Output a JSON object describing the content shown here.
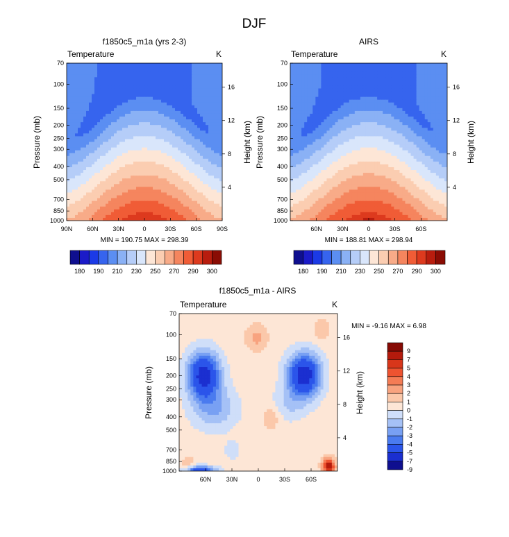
{
  "figure": {
    "title": "DJF"
  },
  "colors": {
    "sequential": [
      "#0f0f8f",
      "#1b1bc8",
      "#1b3ae6",
      "#3664ee",
      "#5b8ef2",
      "#8ab1f5",
      "#b5cdf8",
      "#d9e6fb",
      "#fde6d6",
      "#fbcdb1",
      "#f8ab88",
      "#f5855e",
      "#f05c36",
      "#dd3a1e",
      "#b81d0e",
      "#8a0c04"
    ],
    "difference": [
      "#0f0f8f",
      "#1b2fd0",
      "#2b55ea",
      "#4a7bef",
      "#78a0f3",
      "#a5c1f6",
      "#cfdef9",
      "#fde6d6",
      "#fbc8aa",
      "#f8a37f",
      "#f47c55",
      "#ee5330",
      "#d8361a",
      "#b41a0c",
      "#860a04"
    ]
  },
  "chart_data": [
    {
      "id": "model",
      "type": "contour",
      "title": "f1850c5_m1a (yrs 2-3)",
      "left_label": "Temperature",
      "right_label": "K",
      "ylabel": "Pressure (mb)",
      "ylabel_right": "Height (km)",
      "pressure_ticks": [
        "70",
        "100",
        "150",
        "200",
        "250",
        "300",
        "400",
        "500",
        "700",
        "850",
        "1000"
      ],
      "pressure_values": [
        70,
        100,
        150,
        200,
        250,
        300,
        400,
        500,
        700,
        850,
        1000
      ],
      "ylim": [
        1000,
        70
      ],
      "height_ticks": [
        "16",
        "12",
        "8",
        "4"
      ],
      "height_values": [
        16,
        12,
        8,
        4
      ],
      "latitude_ticks": [
        "90N",
        "60N",
        "30N",
        "0",
        "30S",
        "60S",
        "90S"
      ],
      "latitude_values": [
        90,
        60,
        30,
        0,
        -30,
        -60,
        -90
      ],
      "xlim": [
        90,
        -90
      ],
      "stats": "MIN = 190.75  MAX = 298.39",
      "stats_min": 190.75,
      "stats_max": 298.39,
      "levels": [
        180,
        185,
        190,
        200,
        210,
        220,
        230,
        240,
        250,
        260,
        270,
        280,
        290,
        295,
        300
      ],
      "colorbar_labels": [
        "180",
        "190",
        "210",
        "230",
        "250",
        "270",
        "290",
        "300"
      ],
      "colorbar_orientation": "horizontal"
    },
    {
      "id": "obs",
      "type": "contour",
      "title": "AIRS",
      "left_label": "Temperature",
      "right_label": "K",
      "ylabel": "Pressure (mb)",
      "ylabel_right": "Height (km)",
      "pressure_ticks": [
        "70",
        "100",
        "150",
        "200",
        "250",
        "300",
        "400",
        "500",
        "700",
        "850",
        "1000"
      ],
      "pressure_values": [
        70,
        100,
        150,
        200,
        250,
        300,
        400,
        500,
        700,
        850,
        1000
      ],
      "ylim": [
        1000,
        70
      ],
      "height_ticks": [
        "16",
        "12",
        "8",
        "4"
      ],
      "height_values": [
        16,
        12,
        8,
        4
      ],
      "latitude_ticks": [
        "60N",
        "30N",
        "0",
        "30S",
        "60S"
      ],
      "latitude_values": [
        60,
        30,
        0,
        -30,
        -60
      ],
      "xlim": [
        90,
        -90
      ],
      "stats": "MIN = 188.81  MAX = 298.94",
      "stats_min": 188.81,
      "stats_max": 298.94,
      "levels": [
        180,
        185,
        190,
        200,
        210,
        220,
        230,
        240,
        250,
        260,
        270,
        280,
        290,
        295,
        300
      ],
      "colorbar_labels": [
        "180",
        "190",
        "210",
        "230",
        "250",
        "270",
        "290",
        "300"
      ],
      "colorbar_orientation": "horizontal"
    },
    {
      "id": "diff",
      "type": "contour",
      "title": "f1850c5_m1a - AIRS",
      "left_label": "Temperature",
      "right_label": "K",
      "ylabel": "Pressure (mb)",
      "ylabel_right": "Height (km)",
      "pressure_ticks": [
        "70",
        "100",
        "150",
        "200",
        "250",
        "300",
        "400",
        "500",
        "700",
        "850",
        "1000"
      ],
      "pressure_values": [
        70,
        100,
        150,
        200,
        250,
        300,
        400,
        500,
        700,
        850,
        1000
      ],
      "ylim": [
        1000,
        70
      ],
      "height_ticks": [
        "16",
        "12",
        "8",
        "4"
      ],
      "height_values": [
        16,
        12,
        8,
        4
      ],
      "latitude_ticks": [
        "60N",
        "30N",
        "0",
        "30S",
        "60S"
      ],
      "latitude_values": [
        60,
        30,
        0,
        -30,
        -60
      ],
      "xlim": [
        90,
        -90
      ],
      "stats": "MIN =  -9.16  MAX =  6.98",
      "stats_min": -9.16,
      "stats_max": 6.98,
      "levels": [
        -9,
        -7,
        -5,
        -4,
        -3,
        -2,
        -1,
        0,
        1,
        2,
        3,
        4,
        5,
        7,
        9
      ],
      "colorbar_labels": [
        "9",
        "7",
        "5",
        "4",
        "3",
        "2",
        "1",
        "0",
        "-1",
        "-2",
        "-3",
        "-4",
        "-5",
        "-7",
        "-9"
      ],
      "colorbar_orientation": "vertical"
    }
  ]
}
